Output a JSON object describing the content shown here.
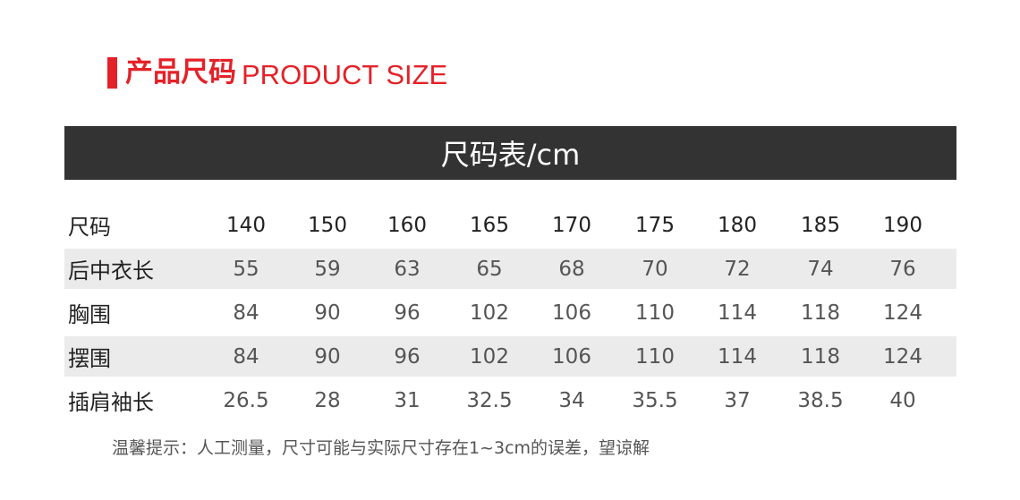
{
  "header": {
    "title_cn": "产品尺码",
    "title_en": "PRODUCT SIZE",
    "accent_color": "#e42128"
  },
  "banner": {
    "text": "尺码表/cm"
  },
  "table": {
    "columns": [
      "尺码",
      "140",
      "150",
      "160",
      "165",
      "170",
      "175",
      "180",
      "185",
      "190"
    ],
    "rows": [
      {
        "label": "后中衣长",
        "values": [
          "55",
          "59",
          "63",
          "65",
          "68",
          "70",
          "72",
          "74",
          "76"
        ]
      },
      {
        "label": "胸围",
        "values": [
          "84",
          "90",
          "96",
          "102",
          "106",
          "110",
          "114",
          "118",
          "124"
        ]
      },
      {
        "label": "摆围",
        "values": [
          "84",
          "90",
          "96",
          "102",
          "106",
          "110",
          "114",
          "118",
          "124"
        ]
      },
      {
        "label": "插肩袖长",
        "values": [
          "26.5",
          "28",
          "31",
          "32.5",
          "34",
          "35.5",
          "37",
          "38.5",
          "40"
        ]
      }
    ]
  },
  "note": "温馨提示：人工测量，尺寸可能与实际尺寸存在1~3cm的误差，望谅解"
}
